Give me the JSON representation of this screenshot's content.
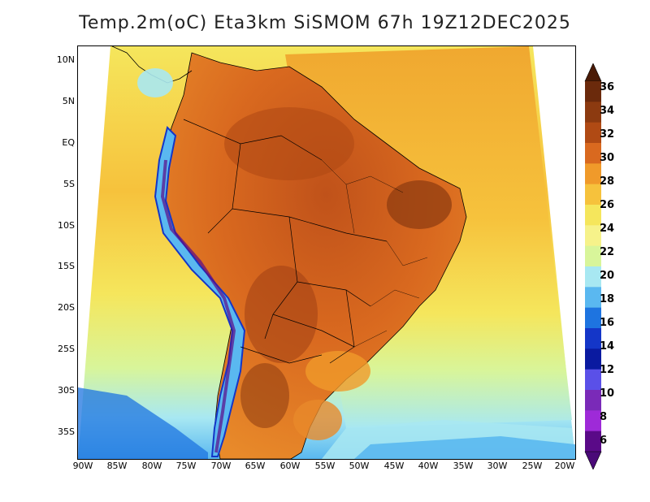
{
  "title": "Temp.2m(oC) Eta3km SiSMOM 67h 19Z12DEC2025",
  "map": {
    "type": "temperature-field",
    "projection": "polar-stereo / conic",
    "lat_labels": [
      "10N",
      "5N",
      "EQ",
      "5S",
      "10S",
      "15S",
      "20S",
      "25S",
      "30S",
      "35S"
    ],
    "lon_labels": [
      "90W",
      "85W",
      "80W",
      "75W",
      "70W",
      "65W",
      "60W",
      "55W",
      "50W",
      "45W",
      "40W",
      "35W",
      "30W",
      "25W",
      "20W"
    ]
  },
  "colorbar": {
    "labels": [
      "36",
      "34",
      "32",
      "30",
      "28",
      "26",
      "24",
      "22",
      "20",
      "18",
      "16",
      "14",
      "12",
      "10",
      "8",
      "6"
    ],
    "colors": [
      "#6b2a0c",
      "#8c3a10",
      "#b04a14",
      "#d9691f",
      "#f09a2a",
      "#f6c23c",
      "#f5e65c",
      "#f6f28a",
      "#d8f59a",
      "#a8e8f2",
      "#5ab8f0",
      "#1e74e0",
      "#1436c8",
      "#0a1aa0",
      "#5a50e8",
      "#7a2ab8",
      "#9e2ad8",
      "#5a0a88"
    ],
    "top_arrow_color": "#4a1a06",
    "bottom_arrow_color": "#4a0a78"
  }
}
